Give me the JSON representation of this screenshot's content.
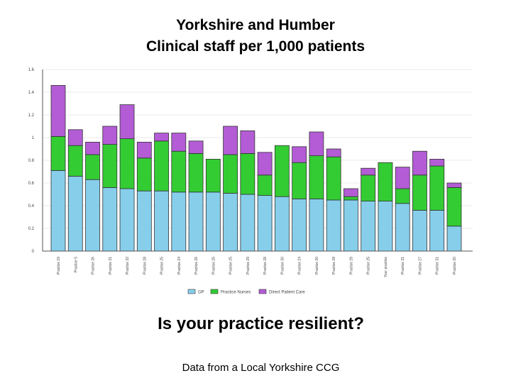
{
  "title_line1": "Yorkshire and Humber",
  "title_line2": "Clinical staff per 1,000 patients",
  "question": "Is your practice resilient?",
  "source": "Data from a Local Yorkshire CCG",
  "chart_data": {
    "type": "bar",
    "stacked": true,
    "categories": [
      "Practice 19",
      "Practice 5",
      "Practice 26",
      "Practice 31",
      "Practice 32",
      "Practice 28",
      "Practice 25",
      "Practice 24",
      "Practice 26",
      "Practice 25",
      "Practice 25",
      "Practice 29",
      "Practice 28",
      "Practice 30",
      "Practice 24",
      "Practice 30",
      "Practice 28",
      "Practice 29",
      "Practice 25",
      "Your practice",
      "Practice 31",
      "Practice 27",
      "Practice 31",
      "Practice 20"
    ],
    "series": [
      {
        "name": "GP",
        "color": "#87ceeb",
        "values": [
          0.71,
          0.66,
          0.63,
          0.56,
          0.55,
          0.53,
          0.53,
          0.52,
          0.52,
          0.52,
          0.51,
          0.5,
          0.49,
          0.48,
          0.46,
          0.46,
          0.45,
          0.45,
          0.44,
          0.44,
          0.42,
          0.36,
          0.36,
          0.22
        ]
      },
      {
        "name": "Practice Nurses",
        "color": "#33cc33",
        "values": [
          0.3,
          0.27,
          0.22,
          0.38,
          0.44,
          0.29,
          0.44,
          0.36,
          0.34,
          0.29,
          0.34,
          0.36,
          0.18,
          0.45,
          0.32,
          0.38,
          0.38,
          0.03,
          0.23,
          0.34,
          0.13,
          0.31,
          0.39,
          0.34
        ]
      },
      {
        "name": "Direct Patient Care",
        "color": "#b35cd6",
        "values": [
          0.45,
          0.14,
          0.11,
          0.16,
          0.3,
          0.14,
          0.07,
          0.16,
          0.11,
          0.0,
          0.25,
          0.2,
          0.2,
          0.0,
          0.14,
          0.21,
          0.07,
          0.07,
          0.06,
          0.0,
          0.19,
          0.21,
          0.06,
          0.04
        ]
      }
    ],
    "title": "",
    "xlabel": "",
    "ylabel": "",
    "ylim": [
      0,
      1.6
    ],
    "yticks": [
      "0",
      "0.2",
      "0.4",
      "0.6",
      "0.8",
      "1",
      "1.2",
      "1.4",
      "1.6"
    ],
    "grid": true,
    "legend": "bottom"
  }
}
